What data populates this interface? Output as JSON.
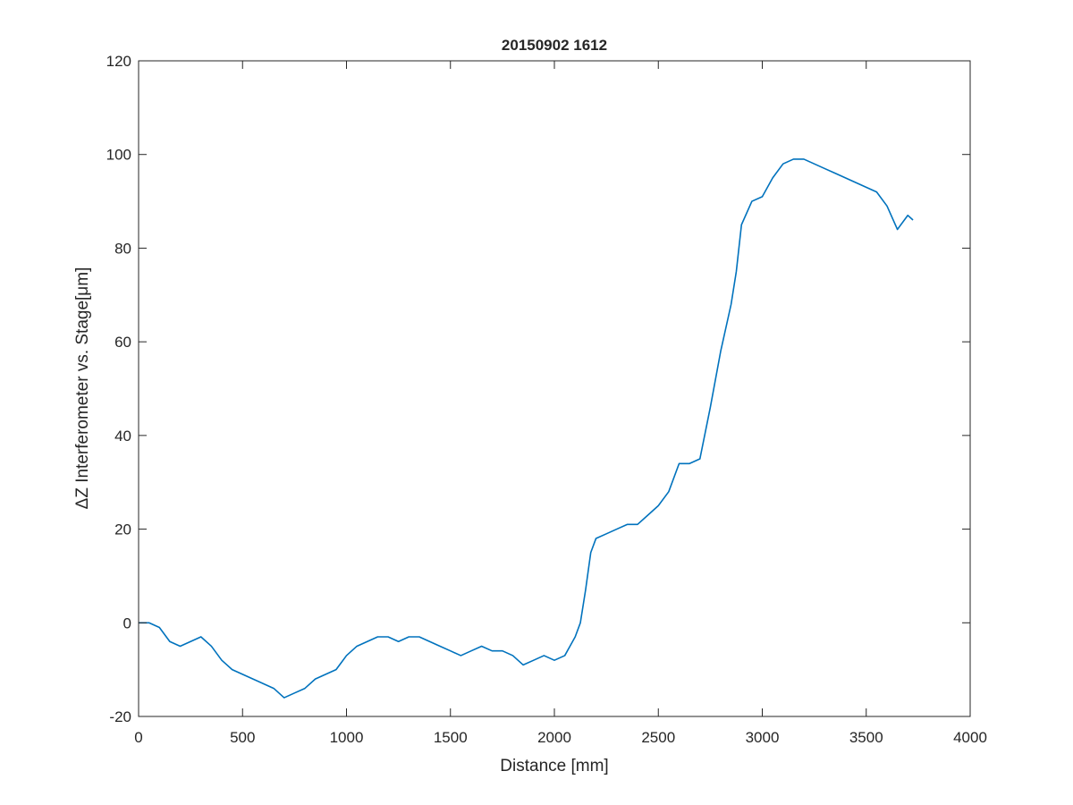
{
  "chart_data": {
    "type": "line",
    "title": "20150902 1612",
    "x_label": "Distance [mm]",
    "y_label": "ΔZ Interferometer vs. Stage[μm]",
    "x": [
      0,
      50,
      100,
      150,
      200,
      250,
      300,
      350,
      400,
      450,
      500,
      550,
      600,
      650,
      700,
      750,
      800,
      850,
      900,
      950,
      1000,
      1050,
      1100,
      1150,
      1200,
      1250,
      1300,
      1350,
      1400,
      1450,
      1500,
      1550,
      1600,
      1650,
      1700,
      1750,
      1800,
      1850,
      1900,
      1950,
      2000,
      2050,
      2100,
      2125,
      2150,
      2175,
      2200,
      2250,
      2300,
      2350,
      2400,
      2450,
      2500,
      2550,
      2600,
      2650,
      2700,
      2750,
      2800,
      2850,
      2875,
      2900,
      2950,
      3000,
      3050,
      3100,
      3150,
      3200,
      3250,
      3300,
      3350,
      3400,
      3450,
      3500,
      3550,
      3600,
      3650,
      3700,
      3725
    ],
    "series": [
      {
        "name": "data",
        "color": "#0072bd",
        "values": [
          0,
          0,
          -1,
          -4,
          -5,
          -4,
          -3,
          -5,
          -8,
          -10,
          -11,
          -12,
          -13,
          -14,
          -16,
          -15,
          -14,
          -12,
          -11,
          -10,
          -7,
          -5,
          -4,
          -3,
          -3,
          -4,
          -3,
          -3,
          -4,
          -5,
          -6,
          -7,
          -6,
          -5,
          -6,
          -6,
          -7,
          -9,
          -8,
          -7,
          -8,
          -7,
          -3,
          0,
          7,
          15,
          18,
          19,
          20,
          21,
          21,
          23,
          25,
          28,
          34,
          34,
          35,
          46,
          58,
          68,
          75,
          85,
          90,
          91,
          95,
          98,
          99,
          99,
          98,
          97,
          96,
          95,
          94,
          93,
          92,
          89,
          84,
          87,
          86
        ]
      }
    ],
    "xlim": [
      0,
      4000
    ],
    "xticks": [
      0,
      500,
      1000,
      1500,
      2000,
      2500,
      3000,
      3500,
      4000
    ],
    "ylim": [
      -20,
      120
    ],
    "yticks": [
      -20,
      0,
      20,
      40,
      60,
      80,
      100,
      120
    ],
    "grid": false
  }
}
